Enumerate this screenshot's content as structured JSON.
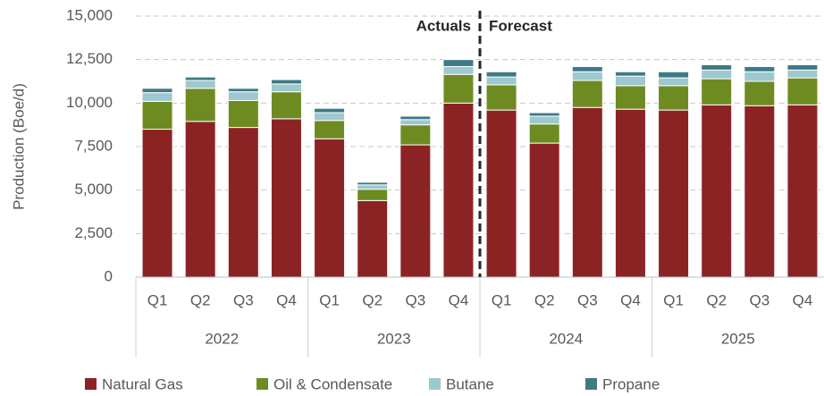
{
  "chart_data": {
    "type": "stacked-bar",
    "y_label": "Production (Boe/d)",
    "categories": [
      "Q1",
      "Q2",
      "Q3",
      "Q4",
      "Q1",
      "Q2",
      "Q3",
      "Q4",
      "Q1",
      "Q2",
      "Q3",
      "Q4",
      "Q1",
      "Q2",
      "Q3",
      "Q4"
    ],
    "groups": [
      "2022",
      "2023",
      "2024",
      "2025"
    ],
    "annotations": [
      "Actuals",
      "Forecast"
    ],
    "series": [
      {
        "name": "Natural Gas",
        "color": "#8b2324",
        "values": [
          8500,
          8950,
          8600,
          9100,
          7950,
          4400,
          7600,
          10000,
          9600,
          7700,
          9750,
          9650,
          9600,
          9900,
          9850,
          9900
        ]
      },
      {
        "name": "Oil & Condensate",
        "color": "#6e8b22",
        "values": [
          1600,
          1900,
          1550,
          1550,
          1050,
          650,
          1150,
          1650,
          1450,
          1100,
          1550,
          1350,
          1400,
          1500,
          1400,
          1550
        ]
      },
      {
        "name": "Butane",
        "color": "#9dc8cf",
        "values": [
          500,
          450,
          500,
          450,
          450,
          250,
          300,
          450,
          450,
          450,
          500,
          550,
          450,
          500,
          550,
          450
        ]
      },
      {
        "name": "Propane",
        "color": "#3e7a86",
        "values": [
          250,
          200,
          200,
          250,
          250,
          150,
          200,
          400,
          300,
          200,
          300,
          250,
          350,
          300,
          300,
          300
        ]
      }
    ],
    "ylim": [
      0,
      15000
    ],
    "yticks": [
      0,
      {
        "value": 2500,
        "label": "2,500"
      },
      {
        "value": 5000,
        "label": "5,000"
      },
      {
        "value": 7500,
        "label": "7,500"
      },
      {
        "value": 10000,
        "label": "10,000"
      },
      {
        "value": 12500,
        "label": "12,500"
      },
      {
        "value": 15000,
        "label": "15,000"
      }
    ],
    "grid": true
  }
}
